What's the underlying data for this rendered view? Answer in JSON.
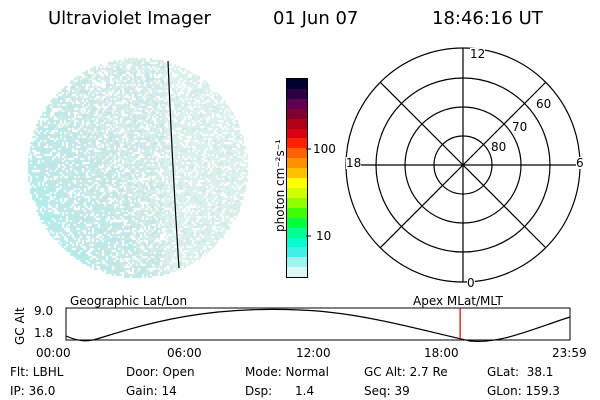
{
  "header": {
    "title": "Ultraviolet Imager",
    "date": "01 Jun 07",
    "time": "18:46:16 UT"
  },
  "colorbar": {
    "unit_label": "photon cm⁻²s⁻¹",
    "ticks": [
      "100",
      "10"
    ],
    "colors": [
      "#000030",
      "#2a0040",
      "#600050",
      "#800030",
      "#b00018",
      "#d80010",
      "#ff2000",
      "#ff6000",
      "#ff9000",
      "#ffc000",
      "#ffff00",
      "#d0ff00",
      "#90ff00",
      "#40ff00",
      "#00ff40",
      "#00ff90",
      "#00ffd0",
      "#40f0e8",
      "#a0f4f0",
      "#dcf8f4"
    ]
  },
  "polar_plot": {
    "mlt_labels": {
      "top": "12",
      "bottom": "0",
      "left": "18",
      "right": "6"
    },
    "lat_labels": [
      "60",
      "70",
      "80"
    ]
  },
  "timeline": {
    "left_title": "Geographic Lat/Lon",
    "right_title": "Apex MLat/MLT",
    "y_axis_label": "GC Alt",
    "y_ticks": [
      "9.0",
      "1.8"
    ],
    "x_ticks": [
      "00:00",
      "06:00",
      "12:00",
      "18:00",
      "23:59"
    ],
    "current_time_fraction": 0.782,
    "marker_color": "#cc0000"
  },
  "info": {
    "filter": "Flt: LBHL",
    "ip": "IP: 36.0",
    "door": "Door: Open",
    "gain": "Gain: 14",
    "mode": "Mode: Normal",
    "dsp": "Dsp:      1.4",
    "gc_alt": "GC Alt: 2.7 Re",
    "seq": "Seq: 39",
    "glat": "GLat:  38.1",
    "glon": "GLon: 159.3"
  }
}
